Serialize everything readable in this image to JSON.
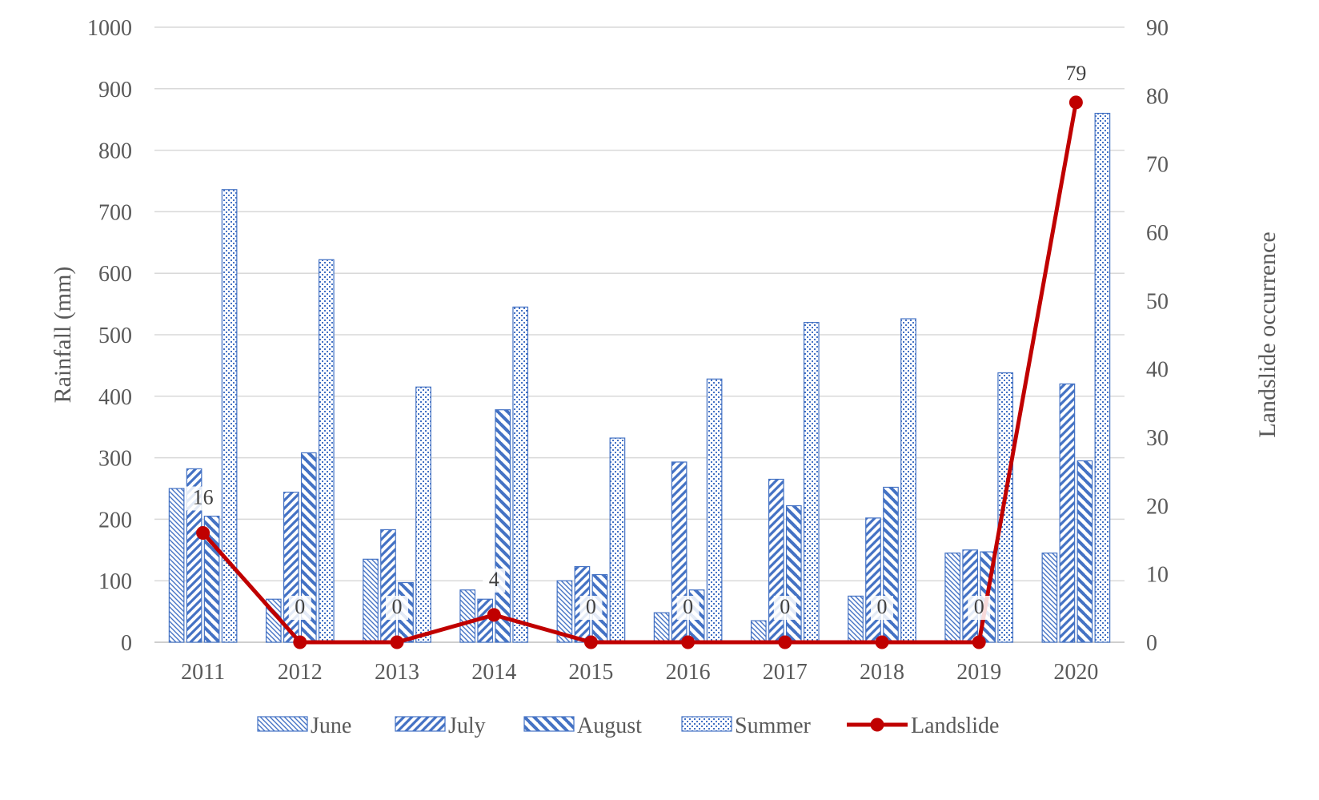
{
  "chart_data": {
    "type": "bar",
    "categories": [
      "2011",
      "2012",
      "2013",
      "2014",
      "2015",
      "2016",
      "2017",
      "2018",
      "2019",
      "2020"
    ],
    "series": [
      {
        "name": "June",
        "kind": "bar",
        "axis": "left",
        "values": [
          250,
          70,
          135,
          85,
          100,
          48,
          35,
          75,
          145,
          145
        ]
      },
      {
        "name": "July",
        "kind": "bar",
        "axis": "left",
        "values": [
          282,
          244,
          183,
          70,
          123,
          293,
          265,
          202,
          150,
          420
        ]
      },
      {
        "name": "August",
        "kind": "bar",
        "axis": "left",
        "values": [
          205,
          308,
          97,
          378,
          110,
          85,
          222,
          252,
          147,
          295
        ]
      },
      {
        "name": "Summer",
        "kind": "bar",
        "axis": "left",
        "values": [
          736,
          622,
          415,
          545,
          332,
          428,
          520,
          526,
          438,
          860
        ]
      },
      {
        "name": "Landslide",
        "kind": "line",
        "axis": "right",
        "values": [
          16,
          0,
          0,
          4,
          0,
          0,
          0,
          0,
          0,
          79
        ],
        "data_labels": [
          "16",
          "0",
          "0",
          "4",
          "0",
          "0",
          "0",
          "0",
          "0",
          "79"
        ]
      }
    ],
    "ylabel": "Rainfall (mm)",
    "y2label": "Landslide occurrence",
    "ylim": [
      0,
      1000
    ],
    "y2lim": [
      0,
      90
    ],
    "yticks": [
      "0",
      "100",
      "200",
      "300",
      "400",
      "500",
      "600",
      "700",
      "800",
      "900",
      "1000"
    ],
    "y2ticks": [
      "0",
      "10",
      "20",
      "30",
      "40",
      "50",
      "60",
      "70",
      "80",
      "90"
    ],
    "grid": true,
    "legend_position": "bottom",
    "colors": {
      "bar": "#4472C4",
      "line": "#C00000",
      "grid": "#D9D9D9",
      "text": "#595959"
    }
  }
}
